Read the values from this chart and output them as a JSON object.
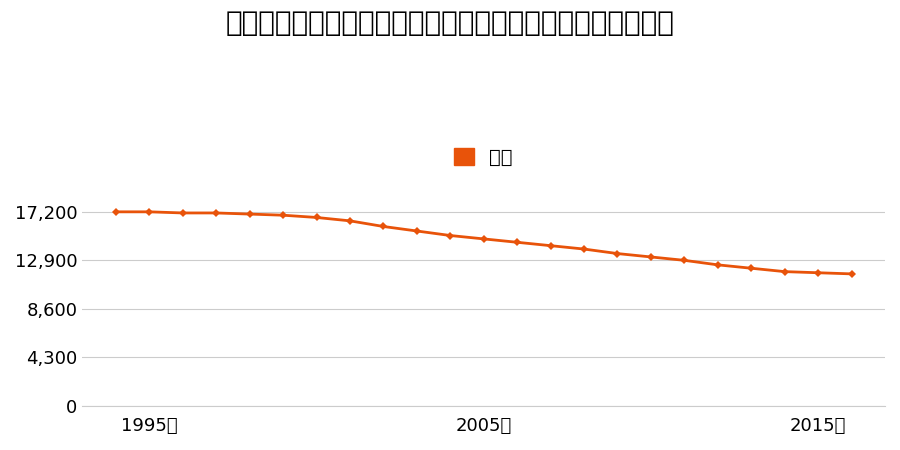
{
  "title": "福島県東白川郡塙町大字上石井字仲堀５６番１外の地価推移",
  "legend_label": "価格",
  "years": [
    1994,
    1995,
    1996,
    1997,
    1998,
    1999,
    2000,
    2001,
    2002,
    2003,
    2004,
    2005,
    2006,
    2007,
    2008,
    2009,
    2010,
    2011,
    2012,
    2013,
    2014,
    2015,
    2016
  ],
  "values": [
    17200,
    17200,
    17100,
    17100,
    17000,
    16900,
    16700,
    16400,
    15900,
    15500,
    15100,
    14800,
    14500,
    14200,
    13900,
    13500,
    13200,
    12900,
    12500,
    12200,
    11900,
    11800,
    11700
  ],
  "line_color": "#e8530a",
  "marker": "D",
  "marker_size": 4,
  "line_width": 2.0,
  "yticks": [
    0,
    4300,
    8600,
    12900,
    17200
  ],
  "xticks": [
    1995,
    2005,
    2015
  ],
  "xlim": [
    1993,
    2017
  ],
  "ylim": [
    0,
    18500
  ],
  "grid_color": "#cccccc",
  "background_color": "#ffffff",
  "title_fontsize": 20,
  "tick_fontsize": 13,
  "legend_fontsize": 14
}
